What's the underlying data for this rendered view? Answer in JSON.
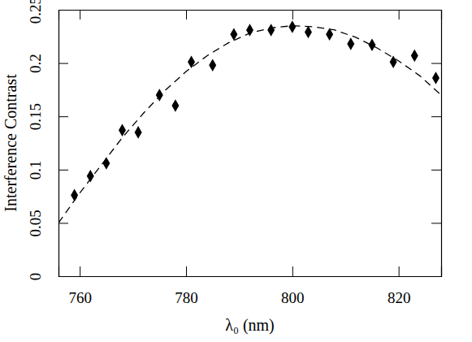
{
  "chart_data": {
    "type": "scatter",
    "xlabel": "λ₀ (nm)",
    "ylabel": "Interference Contrast",
    "xlim": [
      756,
      828
    ],
    "ylim": [
      0,
      0.25
    ],
    "xticks": [
      760,
      780,
      800,
      820
    ],
    "yticks": [
      0,
      0.05,
      0.1,
      0.15,
      0.2,
      0.25
    ],
    "grid": false,
    "series": [
      {
        "type": "scatter",
        "marker": "diamond",
        "color": "#000000",
        "x": [
          759,
          762,
          765,
          768,
          771,
          775,
          778,
          781,
          785,
          789,
          792,
          796,
          800,
          803,
          807,
          811,
          815,
          819,
          823,
          827
        ],
        "values": [
          0.076,
          0.094,
          0.106,
          0.137,
          0.135,
          0.17,
          0.16,
          0.201,
          0.198,
          0.227,
          0.231,
          0.231,
          0.234,
          0.229,
          0.227,
          0.218,
          0.217,
          0.201,
          0.207,
          0.186
        ]
      },
      {
        "type": "line",
        "line_style": "dashed",
        "color": "#000000",
        "x": [
          756,
          760,
          764,
          768,
          772,
          776,
          780,
          784,
          788,
          792,
          796,
          800,
          804,
          808,
          812,
          816,
          820,
          824,
          828
        ],
        "values": [
          0.05,
          0.078,
          0.104,
          0.13,
          0.153,
          0.174,
          0.192,
          0.207,
          0.219,
          0.228,
          0.233,
          0.235,
          0.234,
          0.231,
          0.224,
          0.214,
          0.202,
          0.188,
          0.17
        ]
      }
    ]
  }
}
